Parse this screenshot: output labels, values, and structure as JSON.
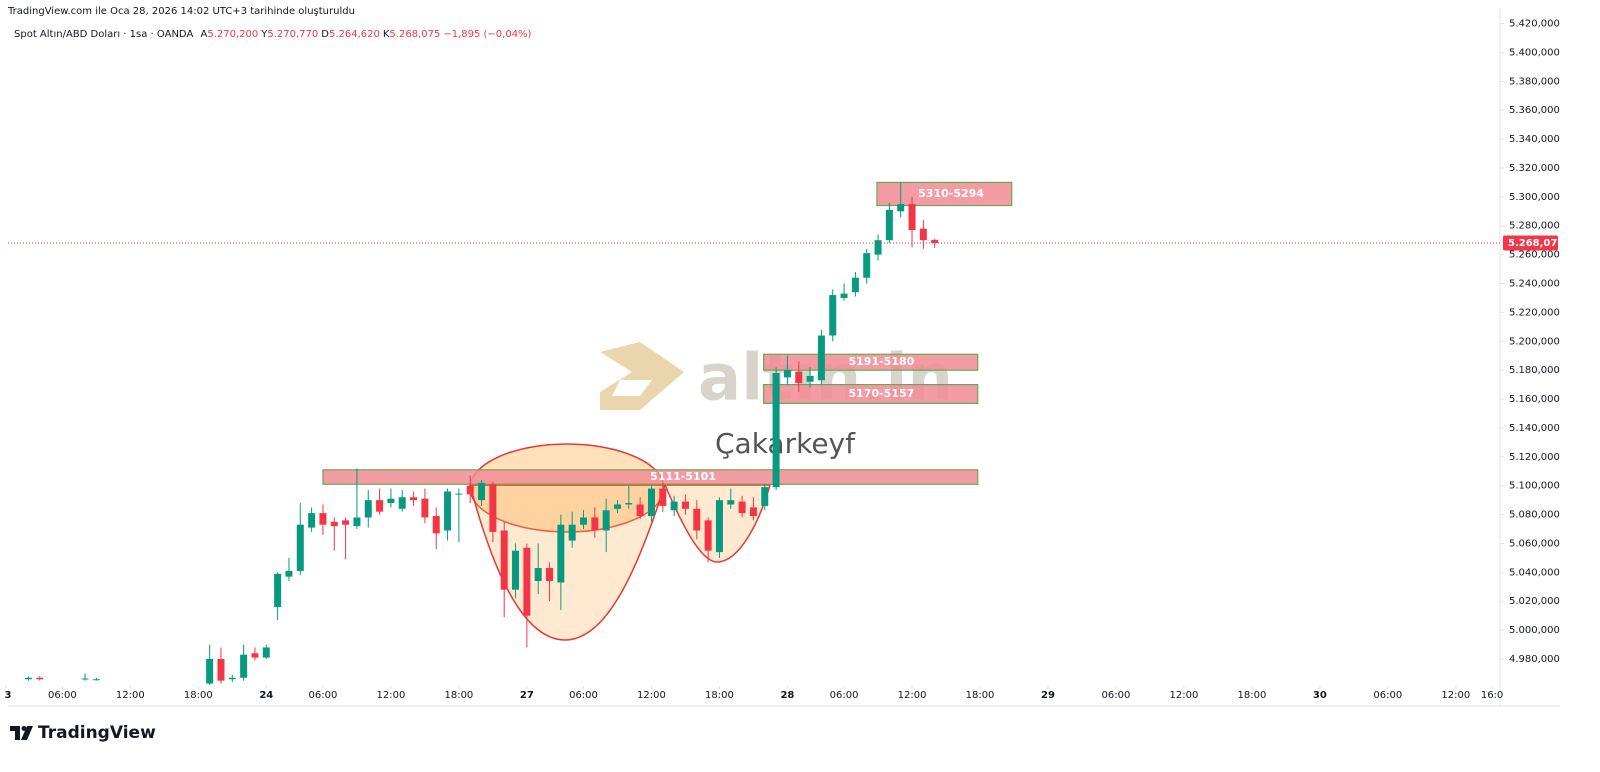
{
  "header": {
    "title": "TradingView.com ile Oca 28, 2026 14:02 UTC+3 tarihinde oluşturuldu"
  },
  "chart_data": {
    "type": "candlestick",
    "symbol": "Spot Altın/ABD Doları · 1sa · OANDA",
    "ohlc_labels": [
      "A",
      "Y",
      "D",
      "K"
    ],
    "ohlc_texts": [
      "5.270,200",
      "5.270,770",
      "5.264,620",
      "5.268,075"
    ],
    "change_text": "−1,895 (−0,04%)",
    "x": [
      -16,
      -15,
      -11,
      -10,
      0,
      1,
      2,
      3,
      4,
      5,
      6,
      7,
      8,
      9,
      10,
      11,
      12,
      13,
      14,
      15,
      16,
      17,
      18,
      19,
      20,
      21,
      22,
      23,
      24,
      25,
      26,
      27,
      28,
      29,
      30,
      31,
      32,
      33,
      34,
      35,
      36,
      37,
      38,
      39,
      40,
      41,
      42,
      43,
      44,
      45,
      46,
      47,
      48,
      49,
      50,
      51,
      52,
      53,
      54,
      55,
      56,
      57,
      58,
      59,
      60,
      61,
      62,
      63,
      64
    ],
    "open": [
      4966,
      4967,
      4966,
      4966,
      4963,
      4980,
      4966,
      4967,
      4984,
      4981,
      5016,
      5037,
      5041,
      5071,
      5081,
      5075,
      5076,
      5072,
      5078,
      5090,
      5088,
      5084,
      5092,
      5091,
      5079,
      5069,
      5094,
      5100,
      5090,
      5101,
      5069,
      5028,
      5057,
      5034,
      5043,
      5033,
      5062,
      5073,
      5078,
      5069,
      5084,
      5087,
      5087,
      5079,
      5098,
      5083,
      5089,
      5084,
      5076,
      5054,
      5087,
      5089,
      5085,
      5086,
      5099,
      5175,
      5179,
      5172,
      5173,
      5204,
      5230,
      5234,
      5244,
      5260,
      5270,
      5290,
      5295,
      5278,
      5270.2
    ],
    "high": [
      4968,
      4968,
      4970,
      4967,
      4990,
      4988,
      4969,
      4990,
      4988,
      4990,
      5040,
      5050,
      5088,
      5085,
      5087,
      5078,
      5078,
      5112,
      5097,
      5098,
      5098,
      5097,
      5096,
      5098,
      5085,
      5098,
      5098,
      5107,
      5104,
      5103,
      5075,
      5060,
      5060,
      5060,
      5047,
      5080,
      5082,
      5083,
      5085,
      5091,
      5090,
      5100,
      5092,
      5100,
      5102,
      5093,
      5094,
      5090,
      5078,
      5092,
      5098,
      5093,
      5092,
      5101,
      5182,
      5190,
      5186,
      5182,
      5208,
      5236,
      5240,
      5248,
      5264,
      5274,
      5296,
      5310,
      5300,
      5284,
      5270.77
    ],
    "low": [
      4965,
      4965,
      4965,
      4965,
      4962,
      4963,
      4964,
      4965,
      4979,
      4980,
      5007,
      5034,
      5038,
      5068,
      5066,
      5055,
      5049,
      5070,
      5071,
      5080,
      5085,
      5082,
      5086,
      5074,
      5056,
      5062,
      5061,
      5088,
      5086,
      5061,
      5009,
      5022,
      4988,
      5025,
      5020,
      5014,
      5057,
      5070,
      5064,
      5054,
      5081,
      5084,
      5077,
      5075,
      5082,
      5079,
      5080,
      5063,
      5047,
      5050,
      5084,
      5078,
      5076,
      5083,
      5097,
      5170,
      5165,
      5168,
      5170,
      5200,
      5228,
      5231,
      5240,
      5256,
      5268,
      5286,
      5265,
      5264,
      5264.62
    ],
    "close": [
      4967,
      4966,
      4966.5,
      4966,
      4980,
      4965,
      4967,
      4983,
      4981,
      4988,
      5039,
      5041,
      5073,
      5081,
      5073,
      5072,
      5073,
      5078,
      5090,
      5082,
      5091,
      5092,
      5090,
      5078,
      5067,
      5096,
      5094.5,
      5094,
      5102,
      5068,
      5028,
      5055,
      5010,
      5043,
      5034,
      5073,
      5073,
      5078,
      5069,
      5083,
      5087,
      5088,
      5079,
      5098,
      5086,
      5089,
      5084,
      5069,
      5055,
      5090,
      5090,
      5081,
      5079,
      5099,
      5178,
      5180,
      5171,
      5176,
      5204,
      5232,
      5233,
      5244,
      5261,
      5270,
      5291,
      5295,
      5277,
      5270,
      5268.075
    ],
    "up_color": "#089981",
    "down_color": "#f23645",
    "xlim": [
      -17.8,
      113.9
    ],
    "xticks": [
      {
        "value": -18,
        "label": "3"
      },
      {
        "value": -13,
        "label": "06:00"
      },
      {
        "value": -7,
        "label": "12:00"
      },
      {
        "value": -1,
        "label": "18:00"
      },
      {
        "value": 5,
        "label": "24"
      },
      {
        "value": 10,
        "label": "06:00"
      },
      {
        "value": 16,
        "label": "12:00"
      },
      {
        "value": 22,
        "label": "18:00"
      },
      {
        "value": 28,
        "label": "27"
      },
      {
        "value": 33,
        "label": "06:00"
      },
      {
        "value": 39,
        "label": "12:00"
      },
      {
        "value": 45,
        "label": "18:00"
      },
      {
        "value": 51,
        "label": "28"
      },
      {
        "value": 56,
        "label": "06:00"
      },
      {
        "value": 62,
        "label": "12:00"
      },
      {
        "value": 68,
        "label": "18:00"
      },
      {
        "value": 74,
        "label": "29"
      },
      {
        "value": 80,
        "label": "06:00"
      },
      {
        "value": 86,
        "label": "12:00"
      },
      {
        "value": 92,
        "label": "18:00"
      },
      {
        "value": 98,
        "label": "30"
      },
      {
        "value": 104,
        "label": "06:00"
      },
      {
        "value": 110,
        "label": "12:00"
      },
      {
        "value": 113.2,
        "label": "16:0"
      }
    ],
    "ylim": [
      4962,
      5428
    ],
    "yticks": [
      {
        "value": 5420,
        "label": "5.420,000"
      },
      {
        "value": 5400,
        "label": "5.400,000"
      },
      {
        "value": 5380,
        "label": "5.380,000"
      },
      {
        "value": 5360,
        "label": "5.360,000"
      },
      {
        "value": 5340,
        "label": "5.340,000"
      },
      {
        "value": 5320,
        "label": "5.320,000"
      },
      {
        "value": 5300,
        "label": "5.300,000"
      },
      {
        "value": 5280,
        "label": "5.280,000"
      },
      {
        "value": 5260,
        "label": "5.260,000"
      },
      {
        "value": 5240,
        "label": "5.240,000"
      },
      {
        "value": 5220,
        "label": "5.220,000"
      },
      {
        "value": 5200,
        "label": "5.200,000"
      },
      {
        "value": 5180,
        "label": "5.180,000"
      },
      {
        "value": 5160,
        "label": "5.160,000"
      },
      {
        "value": 5140,
        "label": "5.140,000"
      },
      {
        "value": 5120,
        "label": "5.120,000"
      },
      {
        "value": 5100,
        "label": "5.100,000"
      },
      {
        "value": 5080,
        "label": "5.080,000"
      },
      {
        "value": 5060,
        "label": "5.060,000"
      },
      {
        "value": 5040,
        "label": "5.040,000"
      },
      {
        "value": 5020,
        "label": "5.020,000"
      },
      {
        "value": 5000,
        "label": "5.000,000"
      },
      {
        "value": 4980,
        "label": "4.980,000"
      }
    ],
    "grid": false,
    "last_price": {
      "value": 5268.075,
      "label": "5.268,075"
    },
    "zone_color": "#f28b94",
    "zones": [
      {
        "label": "5310-5294",
        "high": 5310,
        "low": 5294,
        "x0": 58.9,
        "x1": 70.8
      },
      {
        "label": "5191-5180",
        "high": 5191,
        "low": 5180,
        "x0": 48.9,
        "x1": 67.8
      },
      {
        "label": "5170-5157",
        "high": 5170,
        "low": 5157,
        "x0": 48.9,
        "x1": 67.8
      },
      {
        "label": "5111-5101",
        "high": 5111,
        "low": 5101,
        "x0": 10,
        "x1": 67.8
      }
    ],
    "annotation": "Çakarkeyf",
    "watermark": "altın.in"
  },
  "footer": {
    "brand": "TradingView"
  }
}
